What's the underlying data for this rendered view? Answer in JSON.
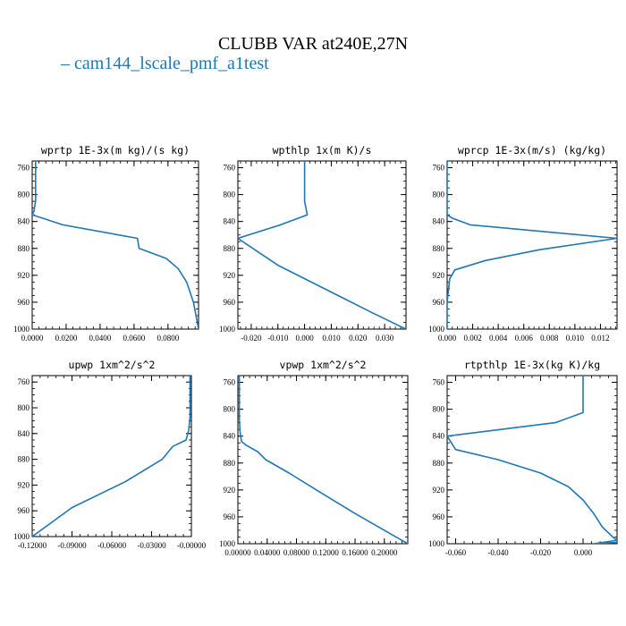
{
  "figure": {
    "title": "CLUBB VAR at240E,27N",
    "legend_label": "cam144_lscale_pmf_a1test",
    "legend_color": "#1f77b4"
  },
  "chart_data": [
    {
      "type": "line",
      "title": "wprtp  1E-3x(m kg)/(s kg)",
      "xlim": [
        0.0,
        0.098
      ],
      "ylim": [
        1000,
        750
      ],
      "yticks": [
        760,
        800,
        840,
        880,
        920,
        960,
        1000
      ],
      "xticks": [
        0.0,
        0.02,
        0.04,
        0.06,
        0.08
      ],
      "xtick_labels": [
        "0.0000",
        "0.0200",
        "0.0400",
        "0.0600",
        "0.0800"
      ],
      "series": [
        {
          "x": [
            0.002,
            0.002,
            0.002,
            0.001,
            0.0,
            0.018,
            0.062,
            0.063,
            0.079,
            0.086,
            0.091,
            0.095,
            0.098
          ],
          "y": [
            750,
            780,
            810,
            825,
            830,
            845,
            865,
            880,
            895,
            910,
            930,
            960,
            1000
          ]
        }
      ]
    },
    {
      "type": "line",
      "title": "wpthlp  1x(m K)/s",
      "xlim": [
        -0.025,
        0.038
      ],
      "ylim": [
        1000,
        750
      ],
      "yticks": [
        760,
        800,
        840,
        880,
        920,
        960,
        1000
      ],
      "xticks": [
        -0.02,
        -0.01,
        0.0,
        0.01,
        0.02,
        0.03
      ],
      "xtick_labels": [
        "-0.020",
        "-0.010",
        "0.000",
        "0.010",
        "0.020",
        "0.030"
      ],
      "series": [
        {
          "x": [
            0.0,
            0.0,
            0.0,
            0.001,
            -0.009,
            -0.025,
            -0.01,
            0.01,
            0.025,
            0.038
          ],
          "y": [
            750,
            790,
            810,
            830,
            845,
            865,
            905,
            945,
            975,
            1000
          ]
        }
      ]
    },
    {
      "type": "line",
      "title": "wprcp  1E-3x(m/s) (kg/kg)",
      "xlim": [
        0.0,
        0.0133
      ],
      "ylim": [
        1000,
        750
      ],
      "yticks": [
        760,
        800,
        840,
        880,
        920,
        960,
        1000
      ],
      "xticks": [
        0.0,
        0.002,
        0.004,
        0.006,
        0.008,
        0.01,
        0.012
      ],
      "xtick_labels": [
        "0.000",
        "0.002",
        "0.004",
        "0.006",
        "0.008",
        "0.010",
        "0.012"
      ],
      "series": [
        {
          "x": [
            0.0,
            0.0,
            0.0,
            0.0,
            0.0004,
            0.0018,
            0.0133,
            0.0072,
            0.003,
            0.0006,
            0.0002,
            0.0,
            0.0
          ],
          "y": [
            750,
            790,
            820,
            830,
            835,
            845,
            865,
            882,
            898,
            912,
            925,
            960,
            1000
          ]
        }
      ]
    },
    {
      "type": "line",
      "title": "upwp  1xm^2/s^2",
      "xlim": [
        -0.12,
        0.0
      ],
      "ylim": [
        1000,
        750
      ],
      "yticks": [
        760,
        800,
        840,
        880,
        920,
        960,
        1000
      ],
      "xticks": [
        -0.12,
        -0.09,
        -0.06,
        -0.03,
        0.0
      ],
      "xtick_labels": [
        "-0.12000",
        "-0.09000",
        "-0.06000",
        "-0.03000",
        "-0.00000"
      ],
      "series": [
        {
          "x": [
            -0.001,
            -0.001,
            -0.001,
            -0.002,
            -0.004,
            -0.014,
            -0.018,
            -0.022,
            -0.05,
            -0.09,
            -0.12
          ],
          "y": [
            750,
            790,
            815,
            835,
            850,
            860,
            870,
            880,
            915,
            955,
            1000
          ]
        }
      ]
    },
    {
      "type": "line",
      "title": "vpwp  1xm^2/s^2",
      "xlim": [
        0.0,
        0.232
      ],
      "ylim": [
        1000,
        750
      ],
      "yticks": [
        760,
        800,
        840,
        880,
        920,
        960,
        1000
      ],
      "xticks": [
        0.0,
        0.04,
        0.08,
        0.12,
        0.16,
        0.2
      ],
      "xtick_labels": [
        "0.00000",
        "0.04000",
        "0.08000",
        "0.12000",
        "0.16000",
        "0.20000"
      ],
      "series": [
        {
          "x": [
            0.002,
            0.002,
            0.002,
            0.003,
            0.005,
            0.012,
            0.027,
            0.038,
            0.07,
            0.11,
            0.16,
            0.232
          ],
          "y": [
            750,
            790,
            815,
            835,
            848,
            854,
            863,
            875,
            895,
            922,
            955,
            1000
          ]
        }
      ]
    },
    {
      "type": "line",
      "title": "rtpthlp  1E-3x(kg K)/kg",
      "xlim": [
        -0.064,
        0.016
      ],
      "ylim": [
        1000,
        750
      ],
      "yticks": [
        760,
        800,
        840,
        880,
        920,
        960,
        1000
      ],
      "xticks": [
        -0.06,
        -0.04,
        -0.02,
        0.0
      ],
      "xtick_labels": [
        "-0.060",
        "-0.040",
        "-0.020",
        "0.000"
      ],
      "series": [
        {
          "x": [
            0.0,
            0.0,
            0.0,
            0.0,
            -0.013,
            -0.064,
            -0.06,
            -0.04,
            -0.02,
            -0.007,
            0.0,
            0.005,
            0.009,
            0.014,
            0.016,
            0.005,
            0.016
          ],
          "y": [
            750,
            780,
            800,
            805,
            820,
            840,
            860,
            875,
            895,
            915,
            935,
            955,
            975,
            990,
            995,
            1000,
            998
          ]
        }
      ]
    }
  ]
}
